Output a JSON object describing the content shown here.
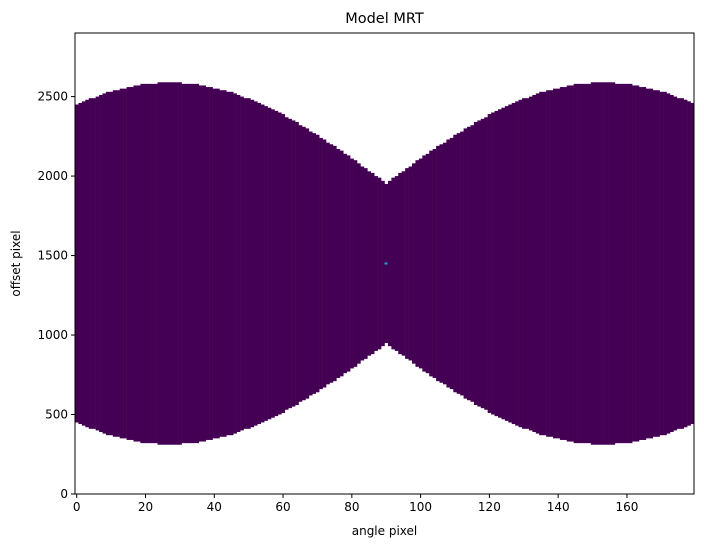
{
  "chart_data": {
    "type": "heatmap",
    "title": "Model MRT",
    "xlabel": "angle pixel",
    "ylabel": "offset pixel",
    "xlim": [
      -0.5,
      179.5
    ],
    "ylim": [
      0,
      2900
    ],
    "x_ticks": [
      0,
      20,
      40,
      60,
      80,
      100,
      120,
      140,
      160
    ],
    "y_ticks": [
      0,
      500,
      1000,
      1500,
      2000,
      2500
    ],
    "colormap": "viridis",
    "background_color": "#ffffff",
    "fill_color": "#440154",
    "grid": false,
    "region": {
      "description_values": "filled offset band per angle; center offset, half-width varies with angle",
      "center": 1450,
      "half_width_max": 1138,
      "half_width_min": 504,
      "period_angles": 126,
      "peak_angles": [
        27,
        153
      ],
      "min_angle": 90
    },
    "hotspot": {
      "angle": 90,
      "offset": 1450,
      "color": "#21a4c5"
    }
  }
}
